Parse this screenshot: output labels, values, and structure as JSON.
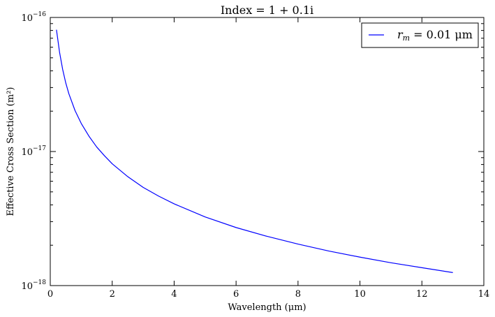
{
  "chart_data": {
    "type": "line",
    "title": "Index = 1 + 0.1i",
    "xlabel": "Wavelength (μm)",
    "ylabel": "Effective Cross Section (m²)",
    "xlim": [
      0,
      14
    ],
    "ylim": [
      1e-18,
      1e-16
    ],
    "yscale": "log",
    "grid": false,
    "legend_position": "top-right",
    "x_ticks": [
      "0",
      "2",
      "4",
      "6",
      "8",
      "10",
      "12",
      "14"
    ],
    "y_ticks": [
      {
        "base": "10",
        "exp": "−18"
      },
      {
        "base": "10",
        "exp": "−17"
      },
      {
        "base": "10",
        "exp": "−16"
      }
    ],
    "series": [
      {
        "name_base": "r",
        "name_sub": "m",
        "name_rest": " = 0.01 μm",
        "color": "#0000ff",
        "x": [
          0.2,
          0.3,
          0.4,
          0.5,
          0.6,
          0.8,
          1.0,
          1.25,
          1.5,
          1.75,
          2.0,
          2.5,
          3.0,
          3.5,
          4.0,
          5.0,
          6.0,
          7.0,
          8.0,
          9.0,
          10.0,
          11.0,
          12.0,
          13.0
        ],
        "y": [
          8.1e-17,
          5.5e-17,
          4.1e-17,
          3.25e-17,
          2.7e-17,
          2.02e-17,
          1.62e-17,
          1.3e-17,
          1.08e-17,
          9.3e-18,
          8.1e-18,
          6.5e-18,
          5.4e-18,
          4.65e-18,
          4.07e-18,
          3.25e-18,
          2.71e-18,
          2.33e-18,
          2.04e-18,
          1.81e-18,
          1.63e-18,
          1.48e-18,
          1.36e-18,
          1.25e-18
        ]
      }
    ]
  }
}
